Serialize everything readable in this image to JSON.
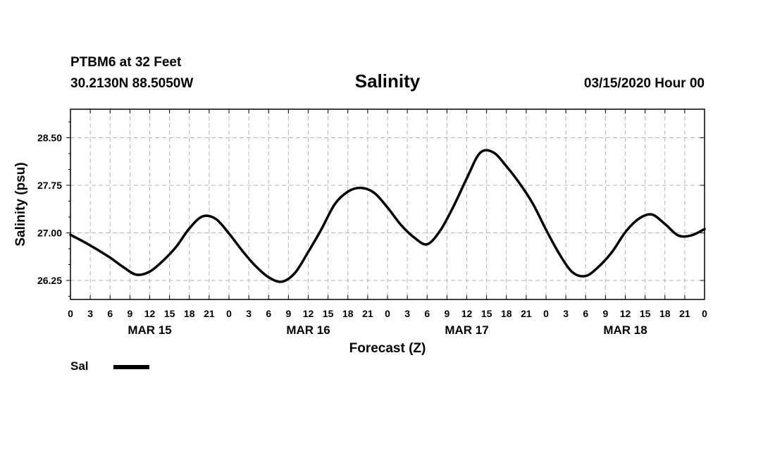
{
  "header": {
    "station": "PTBM6 at 32 Feet",
    "coordinates": "30.2130N 88.5050W",
    "datetime": "03/15/2020 Hour 00"
  },
  "chart_data": {
    "type": "line",
    "title": "Salinity",
    "xlabel": "Forecast (Z)",
    "ylabel": "Salinity (psu)",
    "x_unit": "forecast hour",
    "xlim": [
      0,
      96
    ],
    "ylim": [
      25.95,
      28.95
    ],
    "y_ticks": [
      26.25,
      27.0,
      27.75,
      28.5
    ],
    "y_tick_labels": [
      "26.25",
      "27.00",
      "27.75",
      "28.50"
    ],
    "y_minor_step": 0.25,
    "x_tick_hours": [
      0,
      3,
      6,
      9,
      12,
      15,
      18,
      21,
      24,
      27,
      30,
      33,
      36,
      39,
      42,
      45,
      48,
      51,
      54,
      57,
      60,
      63,
      66,
      69,
      72,
      75,
      78,
      81,
      84,
      87,
      90,
      93,
      96
    ],
    "x_tick_labels": [
      "0",
      "3",
      "6",
      "9",
      "12",
      "15",
      "18",
      "21",
      "0",
      "3",
      "6",
      "9",
      "12",
      "15",
      "18",
      "21",
      "0",
      "3",
      "6",
      "9",
      "12",
      "15",
      "18",
      "21",
      "0",
      "3",
      "6",
      "9",
      "12",
      "15",
      "18",
      "21",
      "0"
    ],
    "date_labels": [
      {
        "hour": 12,
        "label": "MAR 15"
      },
      {
        "hour": 36,
        "label": "MAR 16"
      },
      {
        "hour": 60,
        "label": "MAR 17"
      },
      {
        "hour": 84,
        "label": "MAR 18"
      }
    ],
    "grid": true,
    "series": [
      {
        "name": "Sal",
        "x": [
          0,
          2,
          4,
          6,
          8,
          10,
          12,
          14,
          16,
          18,
          20,
          22,
          24,
          26,
          28,
          30,
          32,
          34,
          36,
          38,
          40,
          42,
          44,
          46,
          48,
          50,
          52,
          54,
          56,
          58,
          60,
          62,
          64,
          66,
          68,
          70,
          72,
          74,
          76,
          78,
          80,
          82,
          84,
          86,
          88,
          90,
          92,
          94,
          96
        ],
        "y": [
          26.97,
          26.86,
          26.74,
          26.61,
          26.46,
          26.34,
          26.39,
          26.56,
          26.78,
          27.07,
          27.26,
          27.22,
          26.99,
          26.72,
          26.48,
          26.3,
          26.23,
          26.37,
          26.7,
          27.06,
          27.45,
          27.65,
          27.71,
          27.63,
          27.4,
          27.13,
          26.93,
          26.82,
          27.04,
          27.42,
          27.86,
          28.26,
          28.27,
          28.05,
          27.78,
          27.46,
          27.05,
          26.67,
          26.38,
          26.32,
          26.47,
          26.7,
          27.01,
          27.22,
          27.29,
          27.14,
          26.96,
          26.96,
          27.06
        ]
      }
    ],
    "legend": [
      {
        "label": "Sal",
        "placement": "bottom-left"
      }
    ]
  }
}
